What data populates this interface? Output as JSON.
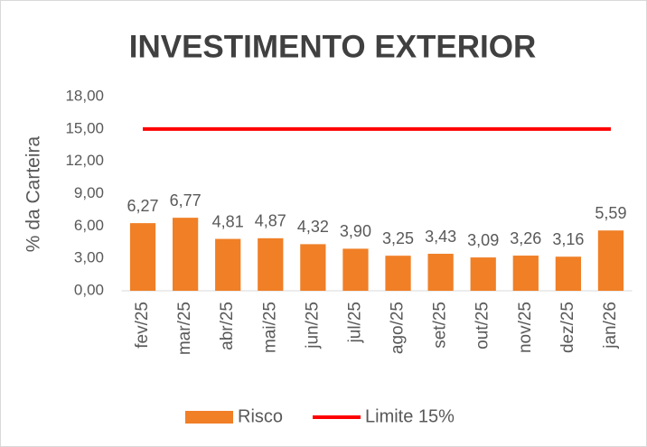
{
  "chart_data": {
    "type": "bar",
    "title": "INVESTIMENTO EXTERIOR",
    "y_label": "% da Carteira",
    "categories": [
      "fev/25",
      "mar/25",
      "abr/25",
      "mai/25",
      "jun/25",
      "jul/25",
      "ago/25",
      "set/25",
      "out/25",
      "nov/25",
      "dez/25",
      "jan/26"
    ],
    "series": [
      {
        "name": "Risco",
        "type": "bar",
        "color": "#f07f26",
        "values": [
          6.27,
          6.77,
          4.81,
          4.87,
          4.32,
          3.9,
          3.25,
          3.43,
          3.09,
          3.26,
          3.16,
          5.59
        ],
        "value_labels": [
          "6,27",
          "6,77",
          "4,81",
          "4,87",
          "4,32",
          "3,90",
          "3,25",
          "3,43",
          "3,09",
          "3,26",
          "3,16",
          "5,59"
        ]
      },
      {
        "name": "Limite 15%",
        "type": "line",
        "color": "#ff0000",
        "values": [
          15,
          15,
          15,
          15,
          15,
          15,
          15,
          15,
          15,
          15,
          15,
          15
        ]
      }
    ],
    "ylim": [
      0,
      18
    ],
    "yticks": [
      {
        "value": 0,
        "label": "0,00"
      },
      {
        "value": 3,
        "label": "3,00"
      },
      {
        "value": 6,
        "label": "6,00"
      },
      {
        "value": 9,
        "label": "9,00"
      },
      {
        "value": 12,
        "label": "12,00"
      },
      {
        "value": 15,
        "label": "15,00"
      },
      {
        "value": 18,
        "label": "18,00"
      }
    ],
    "grid": false,
    "legend": "bottom"
  }
}
